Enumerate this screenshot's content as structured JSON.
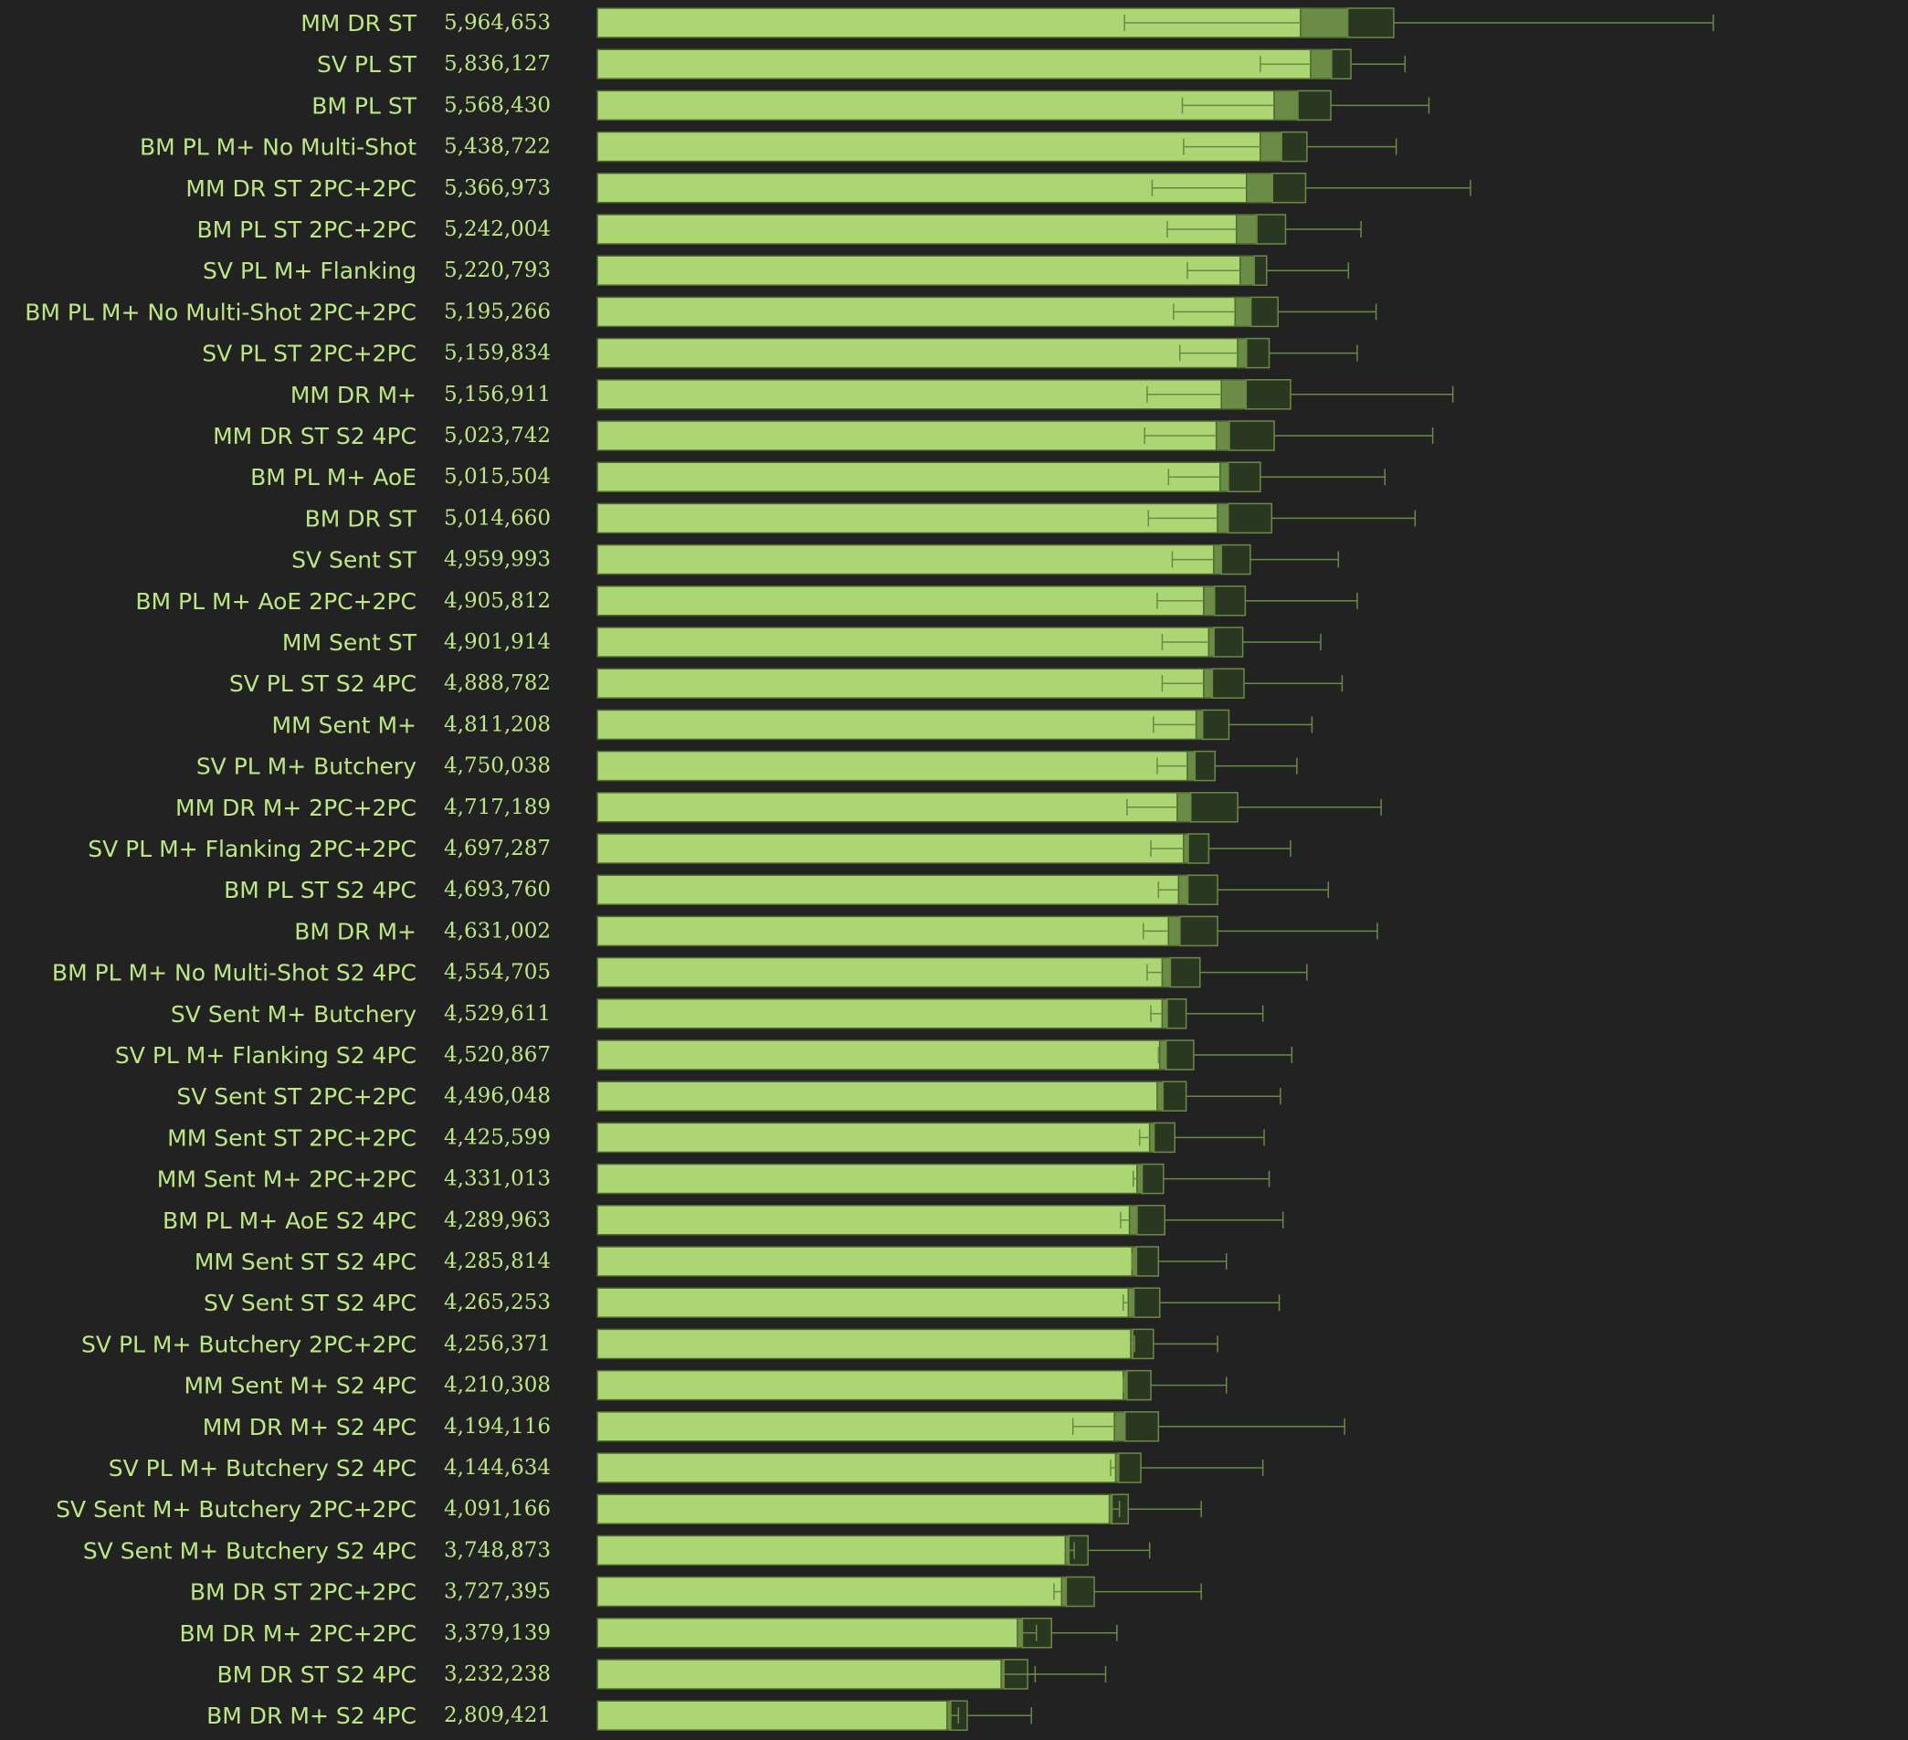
{
  "chart_data": {
    "type": "bar",
    "orientation": "horizontal",
    "categories": [
      "MM DR ST",
      "SV PL ST",
      "BM PL ST",
      "BM PL M+ No Multi-Shot",
      "MM DR ST 2PC+2PC",
      "BM PL ST 2PC+2PC",
      "SV PL M+ Flanking",
      "BM PL M+ No Multi-Shot 2PC+2PC",
      "SV PL ST 2PC+2PC",
      "MM DR M+",
      "MM DR ST S2 4PC",
      "BM PL M+ AoE",
      "BM DR ST",
      "SV Sent ST",
      "BM PL M+ AoE 2PC+2PC",
      "MM Sent ST",
      "SV PL ST S2 4PC",
      "MM Sent M+",
      "SV PL M+ Butchery",
      "MM DR M+ 2PC+2PC",
      "SV PL M+ Flanking 2PC+2PC",
      "BM PL ST S2 4PC",
      "BM DR M+",
      "BM PL M+ No Multi-Shot S2 4PC",
      "SV Sent M+ Butchery",
      "SV PL M+ Flanking S2 4PC",
      "SV Sent ST 2PC+2PC",
      "MM Sent ST 2PC+2PC",
      "MM Sent M+ 2PC+2PC",
      "BM PL M+ AoE S2 4PC",
      "MM Sent ST S2 4PC",
      "SV Sent ST S2 4PC",
      "SV PL M+ Butchery 2PC+2PC",
      "MM Sent M+ S2 4PC",
      "MM DR M+ S2 4PC",
      "SV PL M+ Butchery S2 4PC",
      "SV Sent M+ Butchery 2PC+2PC",
      "SV Sent M+ Butchery S2 4PC",
      "BM DR ST 2PC+2PC",
      "BM DR M+ 2PC+2PC",
      "BM DR ST S2 4PC",
      "BM DR M+ S2 4PC"
    ],
    "value_labels": [
      "5,964,653",
      "5,836,127",
      "5,568,430",
      "5,438,722",
      "5,366,973",
      "5,242,004",
      "5,220,793",
      "5,195,266",
      "5,159,834",
      "5,156,911",
      "5,023,742",
      "5,015,504",
      "5,014,660",
      "4,959,993",
      "4,905,812",
      "4,901,914",
      "4,888,782",
      "4,811,208",
      "4,750,038",
      "4,717,189",
      "4,697,287",
      "4,693,760",
      "4,631,002",
      "4,554,705",
      "4,529,611",
      "4,520,867",
      "4,496,048",
      "4,425,599",
      "4,331,013",
      "4,289,963",
      "4,285,814",
      "4,265,253",
      "4,256,371",
      "4,210,308",
      "4,194,116",
      "4,144,634",
      "4,091,166",
      "3,748,873",
      "3,727,395",
      "3,379,139",
      "3,232,238",
      "2,809,421"
    ],
    "values": [
      5964653,
      5836127,
      5568430,
      5438722,
      5366973,
      5242004,
      5220793,
      5195266,
      5159834,
      5156911,
      5023742,
      5015504,
      5014660,
      4959993,
      4905812,
      4901914,
      4888782,
      4811208,
      4750038,
      4717189,
      4697287,
      4693760,
      4631002,
      4554705,
      4529611,
      4520867,
      4496048,
      4425599,
      4331013,
      4289963,
      4285814,
      4265253,
      4256371,
      4210308,
      4194116,
      4144634,
      4091166,
      3748873,
      3727395,
      3379139,
      3232238,
      2809421
    ],
    "box_q1": [
      5590000,
      5670000,
      5380000,
      5270000,
      5160000,
      5080000,
      5110000,
      5070000,
      5090000,
      4960000,
      4920000,
      4950000,
      4930000,
      4900000,
      4820000,
      4860000,
      4820000,
      4760000,
      4690000,
      4610000,
      4660000,
      4620000,
      4540000,
      4490000,
      4490000,
      4470000,
      4450000,
      4390000,
      4290000,
      4230000,
      4250000,
      4220000,
      4240000,
      4180000,
      4110000,
      4120000,
      4070000,
      3720000,
      3690000,
      3340000,
      3210000,
      2780000
    ],
    "box_q3": [
      6330000,
      5990000,
      5830000,
      5640000,
      5630000,
      5470000,
      5320000,
      5410000,
      5340000,
      5510000,
      5380000,
      5270000,
      5360000,
      5190000,
      5150000,
      5130000,
      5140000,
      5020000,
      4910000,
      5090000,
      4860000,
      4930000,
      4930000,
      4790000,
      4680000,
      4740000,
      4680000,
      4590000,
      4500000,
      4510000,
      4460000,
      4470000,
      4420000,
      4400000,
      4460000,
      4320000,
      4220000,
      3900000,
      3950000,
      3610000,
      3420000,
      2940000
    ],
    "whisker_low": [
      4190000,
      5270000,
      4650000,
      4660000,
      4410000,
      4530000,
      4690000,
      4580000,
      4630000,
      4370000,
      4350000,
      4540000,
      4380000,
      4570000,
      4450000,
      4490000,
      4490000,
      4420000,
      4450000,
      4210000,
      4400000,
      4460000,
      4340000,
      4370000,
      4400000,
      4460000,
      4460000,
      4310000,
      4260000,
      4160000,
      4250000,
      4180000,
      4270000,
      4180000,
      3780000,
      4080000,
      4150000,
      3790000,
      3630000,
      3490000,
      3480000,
      2870000
    ],
    "whisker_high": [
      8870000,
      6420000,
      6610000,
      6350000,
      6940000,
      6070000,
      5970000,
      6190000,
      6040000,
      6800000,
      6640000,
      6260000,
      6500000,
      5890000,
      6040000,
      5750000,
      5920000,
      5680000,
      5560000,
      6230000,
      5510000,
      5810000,
      6200000,
      5640000,
      5290000,
      5520000,
      5430000,
      5300000,
      5340000,
      5450000,
      5000000,
      5420000,
      4930000,
      5000000,
      5940000,
      5290000,
      4800000,
      4390000,
      4800000,
      4130000,
      4040000,
      3450000
    ],
    "xlim": [
      0,
      10200000
    ],
    "colors": {
      "background": "#222222",
      "bar": "#acd574",
      "bar_edge": "#4e6a2e",
      "box_lower": "#6b8c47",
      "box_upper": "#2b3821",
      "whisker": "#6a8a45",
      "text": "#bde785"
    },
    "grid": false,
    "legend": "none"
  }
}
